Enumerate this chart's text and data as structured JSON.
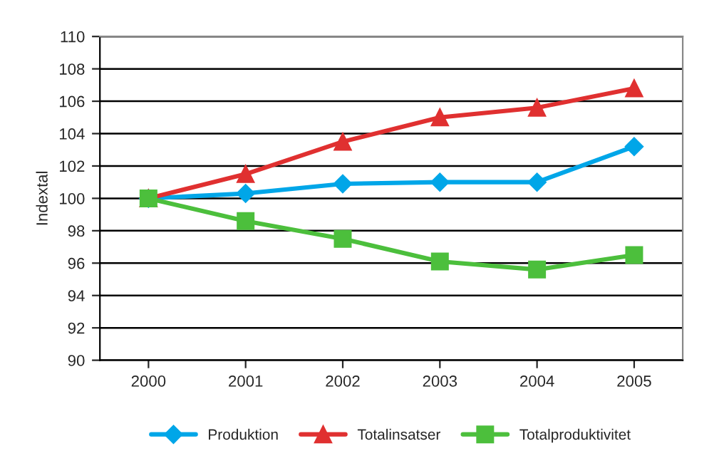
{
  "chart_data": {
    "type": "line",
    "ylabel": "Indextal",
    "categories": [
      "2000",
      "2001",
      "2002",
      "2003",
      "2004",
      "2005"
    ],
    "series": [
      {
        "name": "Produktion",
        "color": "#00a6e8",
        "marker": "diamond",
        "values": [
          100,
          100.3,
          100.9,
          101.0,
          101.0,
          103.2
        ]
      },
      {
        "name": "Totalinsatser",
        "color": "#e03030",
        "marker": "triangle",
        "values": [
          100,
          101.5,
          103.5,
          105.0,
          105.6,
          106.8
        ]
      },
      {
        "name": "Totalproduktivitet",
        "color": "#4cbf3c",
        "marker": "square",
        "values": [
          100,
          98.6,
          97.5,
          96.1,
          95.6,
          96.5
        ]
      }
    ],
    "ylim": [
      90,
      110
    ],
    "yticks": [
      90,
      92,
      94,
      96,
      98,
      100,
      102,
      104,
      106,
      108,
      110
    ],
    "grid": "y",
    "legend": "bottom",
    "line_style": "solid"
  }
}
